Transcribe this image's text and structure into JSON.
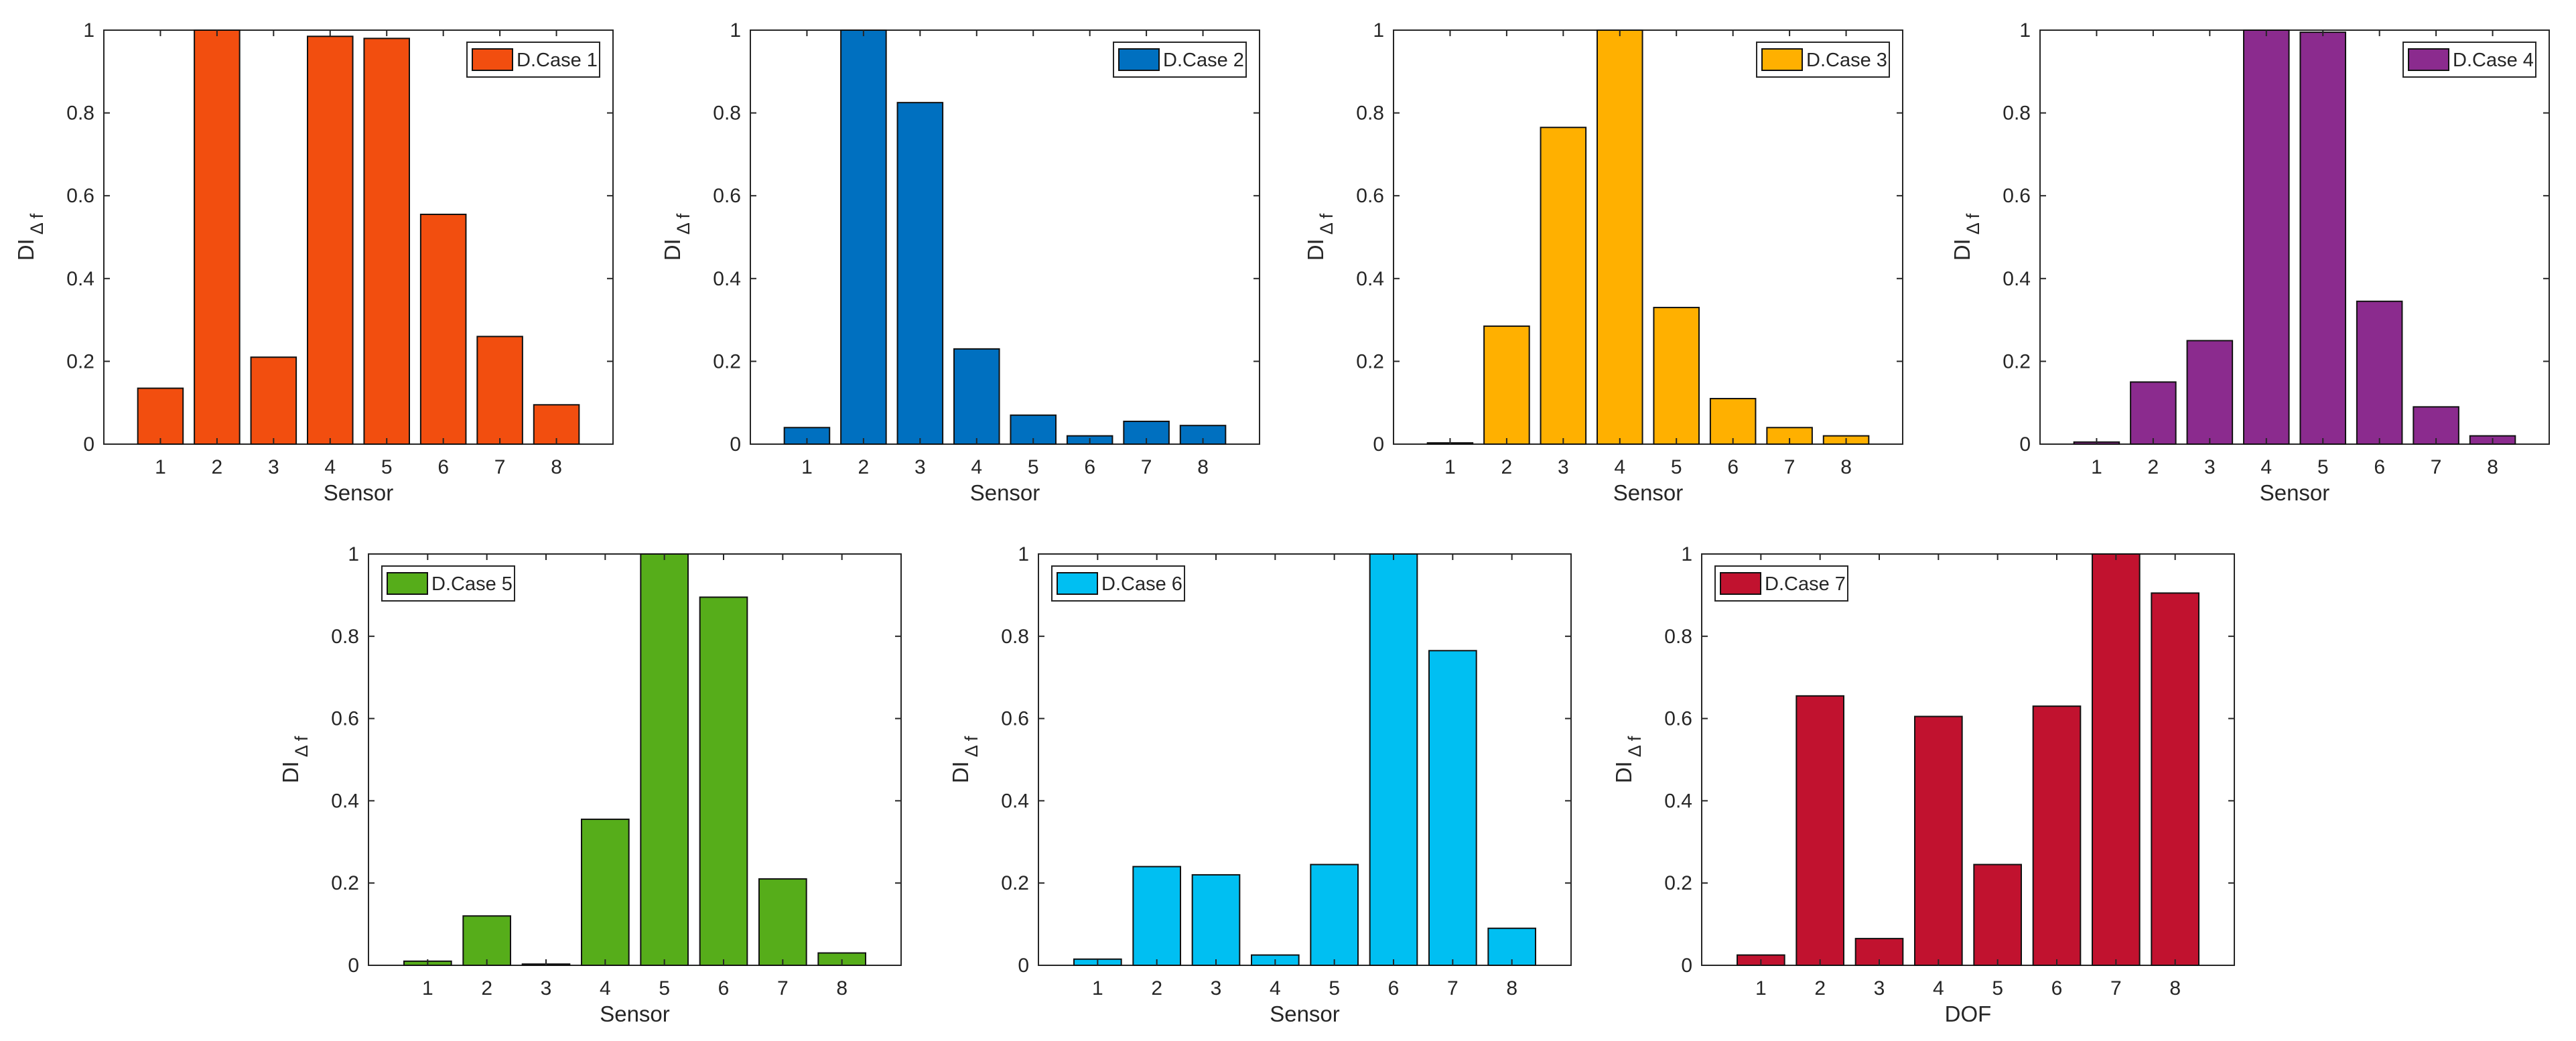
{
  "charts": [
    {
      "legend": "D.Case 1",
      "color": "#F24E0F",
      "xlabel": "Sensor",
      "ylabel": "DI",
      "ylabel_sub": "Δ f",
      "legend_pos": "top-right",
      "categories": [
        "1",
        "2",
        "3",
        "4",
        "5",
        "6",
        "7",
        "8"
      ],
      "values": [
        0.135,
        1.0,
        0.21,
        0.985,
        0.98,
        0.555,
        0.26,
        0.095
      ]
    },
    {
      "legend": "D.Case 2",
      "color": "#0070C0",
      "xlabel": "Sensor",
      "ylabel": "DI",
      "ylabel_sub": "Δ f",
      "legend_pos": "top-right",
      "categories": [
        "1",
        "2",
        "3",
        "4",
        "5",
        "6",
        "7",
        "8"
      ],
      "values": [
        0.04,
        1.0,
        0.825,
        0.23,
        0.07,
        0.02,
        0.055,
        0.045
      ]
    },
    {
      "legend": "D.Case 3",
      "color": "#FFB000",
      "xlabel": "Sensor",
      "ylabel": "DI",
      "ylabel_sub": "Δ f",
      "legend_pos": "top-right",
      "categories": [
        "1",
        "2",
        "3",
        "4",
        "5",
        "6",
        "7",
        "8"
      ],
      "values": [
        0.003,
        0.285,
        0.765,
        1.0,
        0.33,
        0.11,
        0.04,
        0.02
      ]
    },
    {
      "legend": "D.Case 4",
      "color": "#8B2B8E",
      "xlabel": "Sensor",
      "ylabel": "DI",
      "ylabel_sub": "Δ f",
      "legend_pos": "top-right",
      "categories": [
        "1",
        "2",
        "3",
        "4",
        "5",
        "6",
        "7",
        "8"
      ],
      "values": [
        0.005,
        0.15,
        0.25,
        1.0,
        0.995,
        0.345,
        0.09,
        0.02
      ]
    },
    {
      "legend": "D.Case 5",
      "color": "#56AD1A",
      "xlabel": "Sensor",
      "ylabel": "DI",
      "ylabel_sub": "Δ f",
      "legend_pos": "top-left",
      "categories": [
        "1",
        "2",
        "3",
        "4",
        "5",
        "6",
        "7",
        "8"
      ],
      "values": [
        0.01,
        0.12,
        0.003,
        0.355,
        1.0,
        0.895,
        0.21,
        0.03
      ]
    },
    {
      "legend": "D.Case 6",
      "color": "#00BFF2",
      "xlabel": "Sensor",
      "ylabel": "DI",
      "ylabel_sub": "Δ f",
      "legend_pos": "top-left",
      "categories": [
        "1",
        "2",
        "3",
        "4",
        "5",
        "6",
        "7",
        "8"
      ],
      "values": [
        0.015,
        0.24,
        0.22,
        0.025,
        0.245,
        1.0,
        0.765,
        0.09
      ]
    },
    {
      "legend": "D.Case 7",
      "color": "#C1122F",
      "xlabel": "DOF",
      "ylabel": "DI",
      "ylabel_sub": "Δ f",
      "legend_pos": "top-left",
      "categories": [
        "1",
        "2",
        "3",
        "4",
        "5",
        "6",
        "7",
        "8"
      ],
      "values": [
        0.025,
        0.655,
        0.065,
        0.605,
        0.245,
        0.63,
        1.0,
        0.905
      ]
    }
  ],
  "y_ticks": [
    "0",
    "0.2",
    "0.4",
    "0.6",
    "0.8",
    "1"
  ],
  "y_tick_values": [
    0,
    0.2,
    0.4,
    0.6,
    0.8,
    1
  ],
  "ylim": [
    0,
    1
  ]
}
